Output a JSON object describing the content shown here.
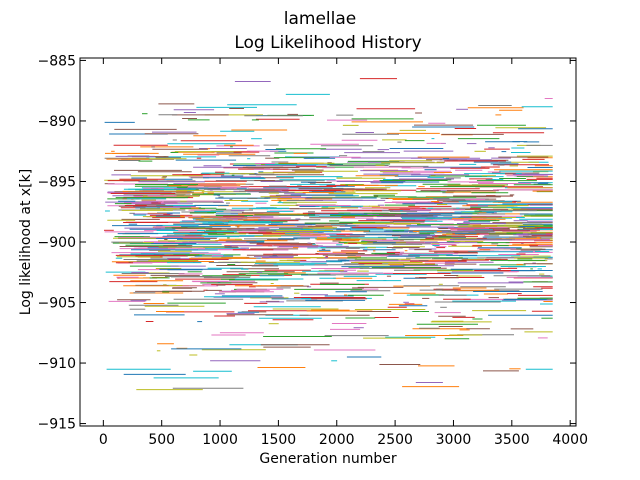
{
  "chart_data": {
    "type": "line",
    "title": "lamellae",
    "subtitle": "Log Likelihood History",
    "xlabel": "Generation number",
    "ylabel": "Log likelihood at x[k]",
    "xlim": [
      -200,
      4050
    ],
    "ylim": [
      -915.2,
      -884.8
    ],
    "xticks": [
      0,
      500,
      1000,
      1500,
      2000,
      2500,
      3000,
      3500,
      4000
    ],
    "xtick_labels": [
      "0",
      "500",
      "1000",
      "1500",
      "2000",
      "2500",
      "3000",
      "3500",
      "4000"
    ],
    "yticks": [
      -885,
      -890,
      -895,
      -900,
      -905,
      -910,
      -915
    ],
    "ytick_labels": [
      "−885",
      "−890",
      "−895",
      "−900",
      "−905",
      "−910",
      "−915"
    ],
    "grid": false,
    "legend": "none",
    "description_of_series": "Many short horizontal segments (step-like traces of individual chains), generations 0 to ~3850, densest between -893 and -905, sparse outliers down to about -914 and up to about -886.",
    "generation_range": [
      0,
      3850
    ],
    "series_density": {
      "center": -898.5,
      "spread": 3.6,
      "min": -914.0,
      "max": -886.0
    },
    "series_colors": [
      "#1f77b4",
      "#ff7f0e",
      "#2ca02c",
      "#d62728",
      "#9467bd",
      "#8c564b",
      "#e377c2",
      "#7f7f7f",
      "#bcbd22",
      "#17becf"
    ]
  }
}
